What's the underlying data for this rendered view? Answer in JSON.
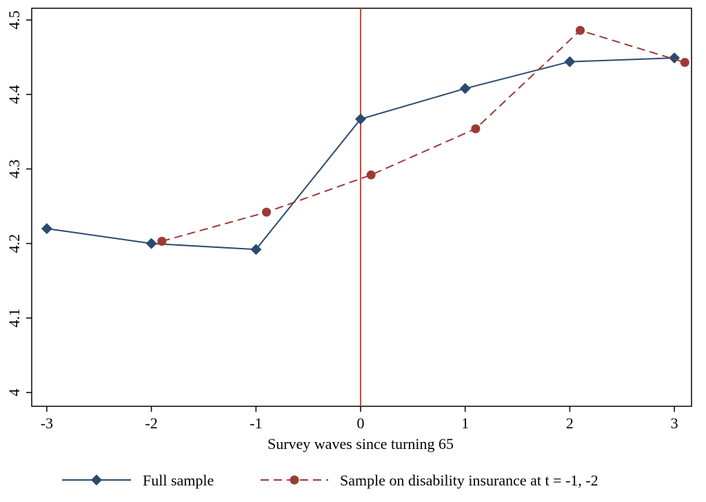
{
  "chart_data": {
    "type": "line",
    "xlabel": "Survey waves since turning 65",
    "ylabel": "",
    "xlim": [
      -3.15,
      3.15
    ],
    "ylim": [
      4.0,
      4.5
    ],
    "x_ticks": [
      "-3",
      "-2",
      "-1",
      "0",
      "1",
      "2",
      "3"
    ],
    "y_ticks": [
      "4",
      "4.1",
      "4.2",
      "4.3",
      "4.4",
      "4.5"
    ],
    "vertical_line": {
      "x": 0,
      "color": "#e8402f"
    },
    "grid": false,
    "legend_position": "bottom",
    "series": [
      {
        "name": "Full sample",
        "color": "#2b4a6f",
        "marker": "diamond",
        "line_style": "solid",
        "x": [
          -3,
          -2,
          -1,
          0,
          1,
          2,
          3
        ],
        "y": [
          4.22,
          4.2,
          4.192,
          4.367,
          4.408,
          4.444,
          4.449
        ]
      },
      {
        "name": "Sample on disability insurance at t = -1, -2",
        "color": "#9c3a36",
        "marker": "circle",
        "line_style": "dashed",
        "x": [
          -1.9,
          -0.9,
          0.1,
          1.1,
          2.1,
          3.1
        ],
        "y": [
          4.203,
          4.242,
          4.292,
          4.354,
          4.486,
          4.443
        ]
      }
    ]
  }
}
